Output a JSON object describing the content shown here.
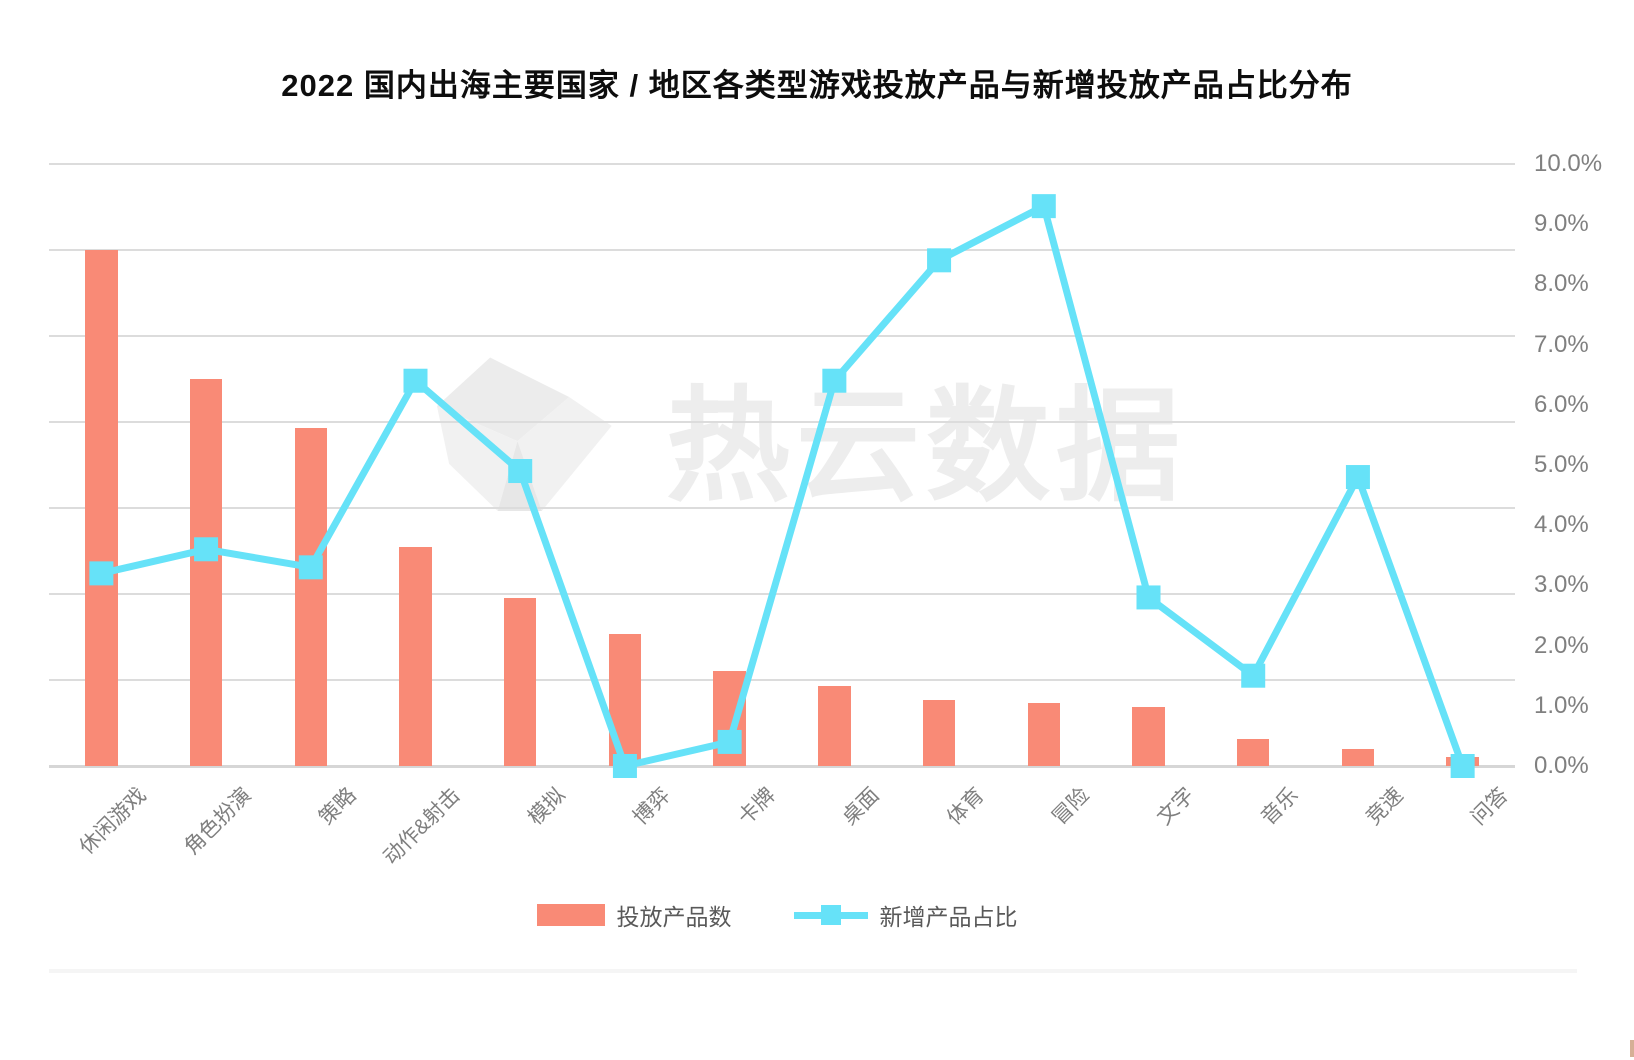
{
  "title": "2022 国内出海主要国家 / 地区各类型游戏投放产品与新增投放产品占比分布",
  "watermark_text": "热云数据",
  "legend": {
    "bar_label": "投放产品数",
    "line_label": "新增产品占比"
  },
  "colors": {
    "bar": "#F98A76",
    "line": "#66E2F8",
    "grid": "#DCDCDC",
    "axis_text": "#808080",
    "title_text": "#0D0D0D",
    "legend_text": "#595959",
    "watermark": "#EDEDED"
  },
  "chart_data": {
    "type": "bar+line (dual axis combo)",
    "title": "2022 国内出海主要国家 / 地区各类型游戏投放产品与新增投放产品占比分布",
    "categories": [
      "休闲游戏",
      "角色扮演",
      "策略",
      "动作&射击",
      "模拟",
      "博弈",
      "卡牌",
      "桌面",
      "体育",
      "冒险",
      "文字",
      "音乐",
      "竞速",
      "问答"
    ],
    "series": [
      {
        "name": "投放产品数",
        "type": "bar",
        "axis": "left",
        "unit": "gridline-units",
        "note": "left axis tick labels are not shown in the image; values measured against the 7 horizontal gridline intervals (full plot height = 7 units)",
        "values": [
          6.0,
          4.5,
          3.93,
          2.55,
          1.95,
          1.53,
          1.11,
          0.93,
          0.77,
          0.73,
          0.69,
          0.31,
          0.2,
          0.1
        ]
      },
      {
        "name": "新增产品占比",
        "type": "line",
        "axis": "right",
        "unit": "percent",
        "marker": "square",
        "values": [
          3.2,
          3.6,
          3.3,
          6.4,
          4.9,
          0.0,
          0.4,
          6.4,
          8.4,
          9.3,
          2.8,
          1.5,
          4.8,
          0.0
        ]
      }
    ],
    "right_axis": {
      "min": 0,
      "max": 10,
      "step": 1,
      "labels": [
        "10.0%",
        "9.0%",
        "8.0%",
        "7.0%",
        "6.0%",
        "5.0%",
        "4.0%",
        "3.0%",
        "2.0%",
        "1.0%",
        "0.0%"
      ]
    },
    "left_axis": {
      "labels_visible": false,
      "gridline_intervals": 7
    },
    "grid": true,
    "legend_position": "bottom"
  }
}
